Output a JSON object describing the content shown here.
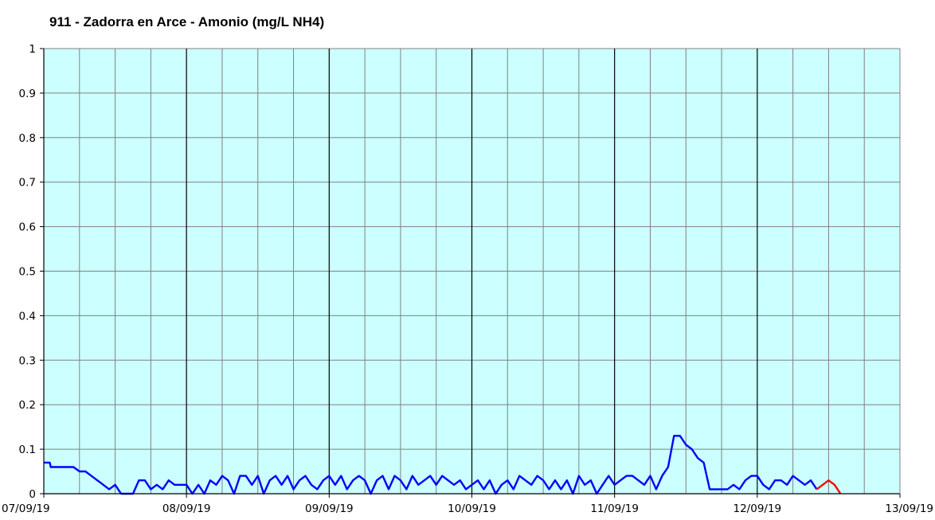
{
  "chart_data": {
    "type": "line",
    "title": "911 - Zadorra en Arce - Amonio (mg/L NH4)",
    "xlabel": "",
    "ylabel": "",
    "xlim": [
      "07/09/19",
      "13/09/19"
    ],
    "ylim": [
      0,
      1
    ],
    "x_tick_labels": [
      "07/09/19",
      "08/09/19",
      "09/09/19",
      "10/09/19",
      "11/09/19",
      "12/09/19",
      "13/09/19"
    ],
    "y_tick_labels": [
      "0",
      "0.1",
      "0.2",
      "0.3",
      "0.4",
      "0.5",
      "0.6",
      "0.7",
      "0.8",
      "0.9",
      "1"
    ],
    "grid": true,
    "plot_background": "#ccffff",
    "major_grid_color": "#000000",
    "minor_grid_color": "#808080",
    "series": [
      {
        "color": "#0000ff",
        "points": [
          [
            "07/09/19 00:00",
            0.07
          ],
          [
            "07/09/19 01:00",
            0.07
          ],
          [
            "07/09/19 01:10",
            0.06
          ],
          [
            "07/09/19 05:00",
            0.06
          ],
          [
            "07/09/19 06:00",
            0.05
          ],
          [
            "07/09/19 07:00",
            0.05
          ],
          [
            "07/09/19 08:00",
            0.04
          ],
          [
            "07/09/19 09:00",
            0.03
          ],
          [
            "07/09/19 10:00",
            0.02
          ],
          [
            "07/09/19 11:00",
            0.01
          ],
          [
            "07/09/19 12:00",
            0.02
          ],
          [
            "07/09/19 13:00",
            0.0
          ],
          [
            "07/09/19 15:00",
            0.0
          ],
          [
            "07/09/19 16:00",
            0.03
          ],
          [
            "07/09/19 17:00",
            0.03
          ],
          [
            "07/09/19 18:00",
            0.01
          ],
          [
            "07/09/19 19:00",
            0.02
          ],
          [
            "07/09/19 20:00",
            0.01
          ],
          [
            "07/09/19 21:00",
            0.03
          ],
          [
            "07/09/19 22:00",
            0.02
          ],
          [
            "07/09/19 23:00",
            0.02
          ],
          [
            "08/09/19 00:00",
            0.02
          ],
          [
            "08/09/19 01:00",
            0.0
          ],
          [
            "08/09/19 02:00",
            0.02
          ],
          [
            "08/09/19 03:00",
            0.0
          ],
          [
            "08/09/19 04:00",
            0.03
          ],
          [
            "08/09/19 05:00",
            0.02
          ],
          [
            "08/09/19 06:00",
            0.04
          ],
          [
            "08/09/19 07:00",
            0.03
          ],
          [
            "08/09/19 08:00",
            0.0
          ],
          [
            "08/09/19 09:00",
            0.04
          ],
          [
            "08/09/19 10:00",
            0.04
          ],
          [
            "08/09/19 11:00",
            0.02
          ],
          [
            "08/09/19 12:00",
            0.04
          ],
          [
            "08/09/19 13:00",
            0.0
          ],
          [
            "08/09/19 14:00",
            0.03
          ],
          [
            "08/09/19 15:00",
            0.04
          ],
          [
            "08/09/19 16:00",
            0.02
          ],
          [
            "08/09/19 17:00",
            0.04
          ],
          [
            "08/09/19 18:00",
            0.01
          ],
          [
            "08/09/19 19:00",
            0.03
          ],
          [
            "08/09/19 20:00",
            0.04
          ],
          [
            "08/09/19 21:00",
            0.02
          ],
          [
            "08/09/19 22:00",
            0.01
          ],
          [
            "08/09/19 23:00",
            0.03
          ],
          [
            "09/09/19 00:00",
            0.04
          ],
          [
            "09/09/19 01:00",
            0.02
          ],
          [
            "09/09/19 02:00",
            0.04
          ],
          [
            "09/09/19 03:00",
            0.01
          ],
          [
            "09/09/19 04:00",
            0.03
          ],
          [
            "09/09/19 05:00",
            0.04
          ],
          [
            "09/09/19 06:00",
            0.03
          ],
          [
            "09/09/19 07:00",
            0.0
          ],
          [
            "09/09/19 08:00",
            0.03
          ],
          [
            "09/09/19 09:00",
            0.04
          ],
          [
            "09/09/19 10:00",
            0.01
          ],
          [
            "09/09/19 11:00",
            0.04
          ],
          [
            "09/09/19 12:00",
            0.03
          ],
          [
            "09/09/19 13:00",
            0.01
          ],
          [
            "09/09/19 14:00",
            0.04
          ],
          [
            "09/09/19 15:00",
            0.02
          ],
          [
            "09/09/19 16:00",
            0.03
          ],
          [
            "09/09/19 17:00",
            0.04
          ],
          [
            "09/09/19 18:00",
            0.02
          ],
          [
            "09/09/19 19:00",
            0.04
          ],
          [
            "09/09/19 20:00",
            0.03
          ],
          [
            "09/09/19 21:00",
            0.02
          ],
          [
            "09/09/19 22:00",
            0.03
          ],
          [
            "09/09/19 23:00",
            0.01
          ],
          [
            "10/09/19 00:00",
            0.02
          ],
          [
            "10/09/19 01:00",
            0.03
          ],
          [
            "10/09/19 02:00",
            0.01
          ],
          [
            "10/09/19 03:00",
            0.03
          ],
          [
            "10/09/19 04:00",
            0.0
          ],
          [
            "10/09/19 05:00",
            0.02
          ],
          [
            "10/09/19 06:00",
            0.03
          ],
          [
            "10/09/19 07:00",
            0.01
          ],
          [
            "10/09/19 08:00",
            0.04
          ],
          [
            "10/09/19 09:00",
            0.03
          ],
          [
            "10/09/19 10:00",
            0.02
          ],
          [
            "10/09/19 11:00",
            0.04
          ],
          [
            "10/09/19 12:00",
            0.03
          ],
          [
            "10/09/19 13:00",
            0.01
          ],
          [
            "10/09/19 14:00",
            0.03
          ],
          [
            "10/09/19 15:00",
            0.01
          ],
          [
            "10/09/19 16:00",
            0.03
          ],
          [
            "10/09/19 17:00",
            0.0
          ],
          [
            "10/09/19 18:00",
            0.04
          ],
          [
            "10/09/19 19:00",
            0.02
          ],
          [
            "10/09/19 20:00",
            0.03
          ],
          [
            "10/09/19 21:00",
            0.0
          ],
          [
            "10/09/19 22:00",
            0.02
          ],
          [
            "10/09/19 23:00",
            0.04
          ],
          [
            "11/09/19 00:00",
            0.02
          ],
          [
            "11/09/19 01:00",
            0.03
          ],
          [
            "11/09/19 02:00",
            0.04
          ],
          [
            "11/09/19 03:00",
            0.04
          ],
          [
            "11/09/19 04:00",
            0.03
          ],
          [
            "11/09/19 05:00",
            0.02
          ],
          [
            "11/09/19 06:00",
            0.04
          ],
          [
            "11/09/19 07:00",
            0.01
          ],
          [
            "11/09/19 08:00",
            0.04
          ],
          [
            "11/09/19 09:00",
            0.06
          ],
          [
            "11/09/19 10:00",
            0.13
          ],
          [
            "11/09/19 11:00",
            0.13
          ],
          [
            "11/09/19 12:00",
            0.11
          ],
          [
            "11/09/19 13:00",
            0.1
          ],
          [
            "11/09/19 14:00",
            0.08
          ],
          [
            "11/09/19 15:00",
            0.07
          ],
          [
            "11/09/19 16:00",
            0.01
          ],
          [
            "11/09/19 17:00",
            0.01
          ],
          [
            "11/09/19 18:00",
            0.01
          ],
          [
            "11/09/19 19:00",
            0.01
          ],
          [
            "11/09/19 20:00",
            0.02
          ],
          [
            "11/09/19 21:00",
            0.01
          ],
          [
            "11/09/19 22:00",
            0.03
          ],
          [
            "11/09/19 23:00",
            0.04
          ],
          [
            "12/09/19 00:00",
            0.04
          ],
          [
            "12/09/19 01:00",
            0.02
          ],
          [
            "12/09/19 02:00",
            0.01
          ],
          [
            "12/09/19 03:00",
            0.03
          ],
          [
            "12/09/19 04:00",
            0.03
          ],
          [
            "12/09/19 05:00",
            0.02
          ],
          [
            "12/09/19 06:00",
            0.04
          ],
          [
            "12/09/19 07:00",
            0.03
          ],
          [
            "12/09/19 08:00",
            0.02
          ],
          [
            "12/09/19 09:00",
            0.03
          ],
          [
            "12/09/19 10:00",
            0.01
          ]
        ]
      },
      {
        "color": "#ff0000",
        "points": [
          [
            "12/09/19 10:00",
            0.01
          ],
          [
            "12/09/19 11:00",
            0.02
          ],
          [
            "12/09/19 12:00",
            0.03
          ],
          [
            "12/09/19 13:00",
            0.02
          ],
          [
            "12/09/19 14:00",
            0.0
          ]
        ]
      }
    ]
  }
}
